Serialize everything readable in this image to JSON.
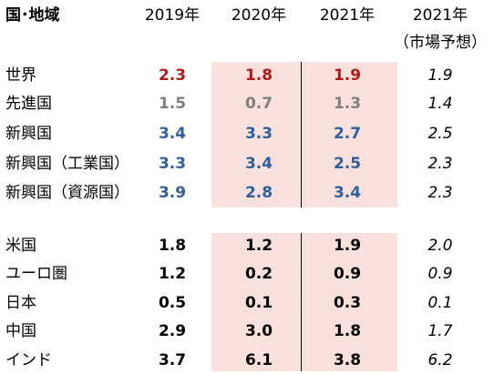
{
  "header": {
    "region": "国･地域",
    "years": [
      "2019年",
      "2020年",
      "2021年",
      "2021年"
    ],
    "forecast_note": "（市場予想）"
  },
  "colors": {
    "red": "#b01c1c",
    "gray": "#808080",
    "blue": "#2e5f9e",
    "black": "#000000",
    "shade": "#f8e1dc"
  },
  "rows": [
    {
      "label": "世界",
      "v2019": "2.3",
      "v2020": "1.8",
      "v2021": "1.9",
      "f2021": "1.9",
      "color": "red"
    },
    {
      "label": "先進国",
      "v2019": "1.5",
      "v2020": "0.7",
      "v2021": "1.3",
      "f2021": "1.4",
      "color": "gray"
    },
    {
      "label": "新興国",
      "v2019": "3.4",
      "v2020": "3.3",
      "v2021": "2.7",
      "f2021": "2.5",
      "color": "blue"
    },
    {
      "label": "新興国（工業国）",
      "v2019": "3.3",
      "v2020": "3.4",
      "v2021": "2.5",
      "f2021": "2.3",
      "color": "blue"
    },
    {
      "label": "新興国（資源国）",
      "v2019": "3.9",
      "v2020": "2.8",
      "v2021": "3.4",
      "f2021": "2.3",
      "color": "blue"
    },
    {
      "label": "米国",
      "v2019": "1.8",
      "v2020": "1.2",
      "v2021": "1.9",
      "f2021": "2.0",
      "color": "black"
    },
    {
      "label": "ユーロ圏",
      "v2019": "1.2",
      "v2020": "0.2",
      "v2021": "0.9",
      "f2021": "0.9",
      "color": "black"
    },
    {
      "label": "日本",
      "v2019": "0.5",
      "v2020": "0.1",
      "v2021": "0.3",
      "f2021": "0.1",
      "color": "black"
    },
    {
      "label": "中国",
      "v2019": "2.9",
      "v2020": "3.0",
      "v2021": "1.8",
      "f2021": "1.7",
      "color": "black"
    },
    {
      "label": "インド",
      "v2019": "3.7",
      "v2020": "6.1",
      "v2021": "3.8",
      "f2021": "6.2",
      "color": "black"
    }
  ]
}
